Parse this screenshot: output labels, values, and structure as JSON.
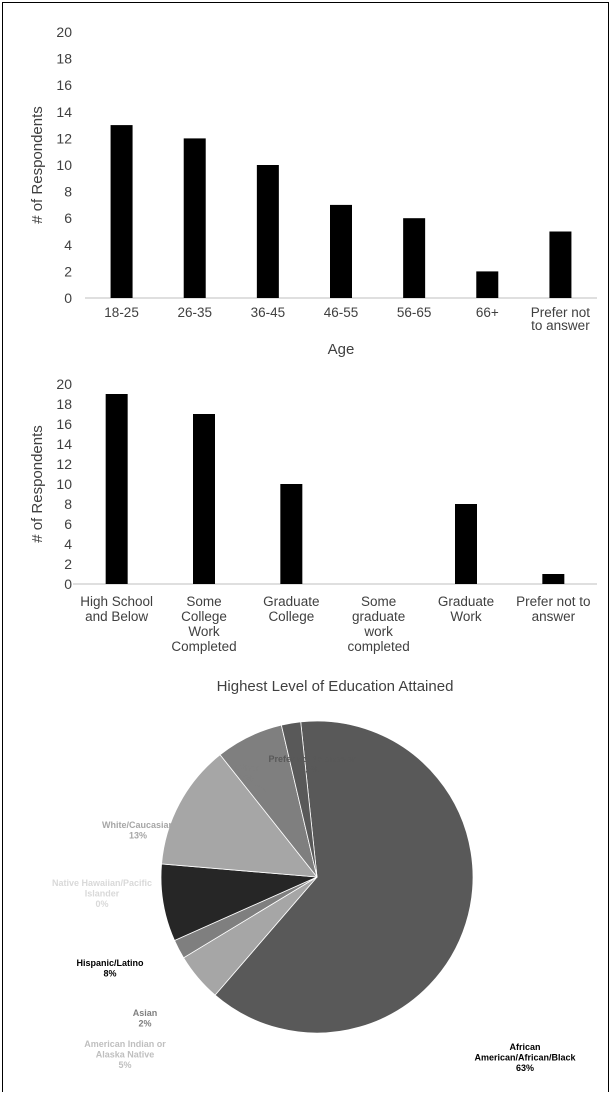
{
  "chart_data": [
    {
      "type": "bar",
      "xlabel": "Age",
      "ylabel": "# of Respondents",
      "ylim": [
        0,
        20
      ],
      "yticks": [
        "0",
        "2",
        "4",
        "6",
        "8",
        "10",
        "12",
        "14",
        "16",
        "18",
        "20"
      ],
      "grid": false,
      "categories": [
        [
          "18-25"
        ],
        [
          "26-35"
        ],
        [
          "36-45"
        ],
        [
          "46-55"
        ],
        [
          "56-65"
        ],
        [
          "66+"
        ],
        [
          "Prefer not",
          "to answer"
        ]
      ],
      "values": [
        13,
        12,
        10,
        7,
        6,
        2,
        5
      ],
      "colors": {
        "bar": "#000000",
        "axis": "#bfbfbf",
        "text": "#404040"
      }
    },
    {
      "type": "bar",
      "xlabel": "Highest Level of Education Attained",
      "ylabel": "# of Respondents",
      "ylim": [
        0,
        20
      ],
      "yticks": [
        "0",
        "2",
        "4",
        "6",
        "8",
        "10",
        "12",
        "14",
        "16",
        "18",
        "20"
      ],
      "grid": false,
      "categories": [
        [
          "High School",
          "and Below"
        ],
        [
          "Some",
          "College",
          "Work",
          "Completed"
        ],
        [
          "Graduate",
          "College"
        ],
        [
          "Some",
          "graduate",
          "work",
          "completed"
        ],
        [
          "Graduate",
          "Work"
        ],
        [
          "Prefer not to",
          "answer"
        ]
      ],
      "values": [
        19,
        17,
        10,
        0,
        8,
        1
      ],
      "colors": {
        "bar": "#000000",
        "axis": "#bfbfbf",
        "text": "#404040"
      }
    },
    {
      "type": "pie",
      "slices": [
        {
          "label": [
            "African",
            "American/African/Black"
          ],
          "pct_text": "63%",
          "value": 63,
          "color": "#595959",
          "label_color": "#000000"
        },
        {
          "label": [
            "American Indian or",
            "Alaska Native"
          ],
          "pct_text": "5%",
          "value": 5,
          "color": "#a6a6a6",
          "label_color": "#bfbfbf"
        },
        {
          "label": [
            "Asian"
          ],
          "pct_text": "2%",
          "value": 2,
          "color": "#7f7f7f",
          "label_color": "#7f7f7f"
        },
        {
          "label": [
            "Hispanic/Latino"
          ],
          "pct_text": "8%",
          "value": 8,
          "color": "#262626",
          "label_color": "#000000"
        },
        {
          "label": [
            "Native Hawaiian/Pacific",
            "Islander"
          ],
          "pct_text": "0%",
          "value": 0,
          "color": "#d9d9d9",
          "label_color": "#d9d9d9"
        },
        {
          "label": [
            "White/Caucasian"
          ],
          "pct_text": "13%",
          "value": 13,
          "color": "#a6a6a6",
          "label_color": "#a6a6a6"
        },
        {
          "label": [
            "Other"
          ],
          "pct_text": "7%",
          "value": 7,
          "color": "#7f7f7f",
          "label_color": "#7f7f7f"
        },
        {
          "label": [
            "Prefer not to answer"
          ],
          "pct_text": "2%",
          "value": 2,
          "color": "#595959",
          "label_color": "#595959"
        }
      ]
    }
  ]
}
